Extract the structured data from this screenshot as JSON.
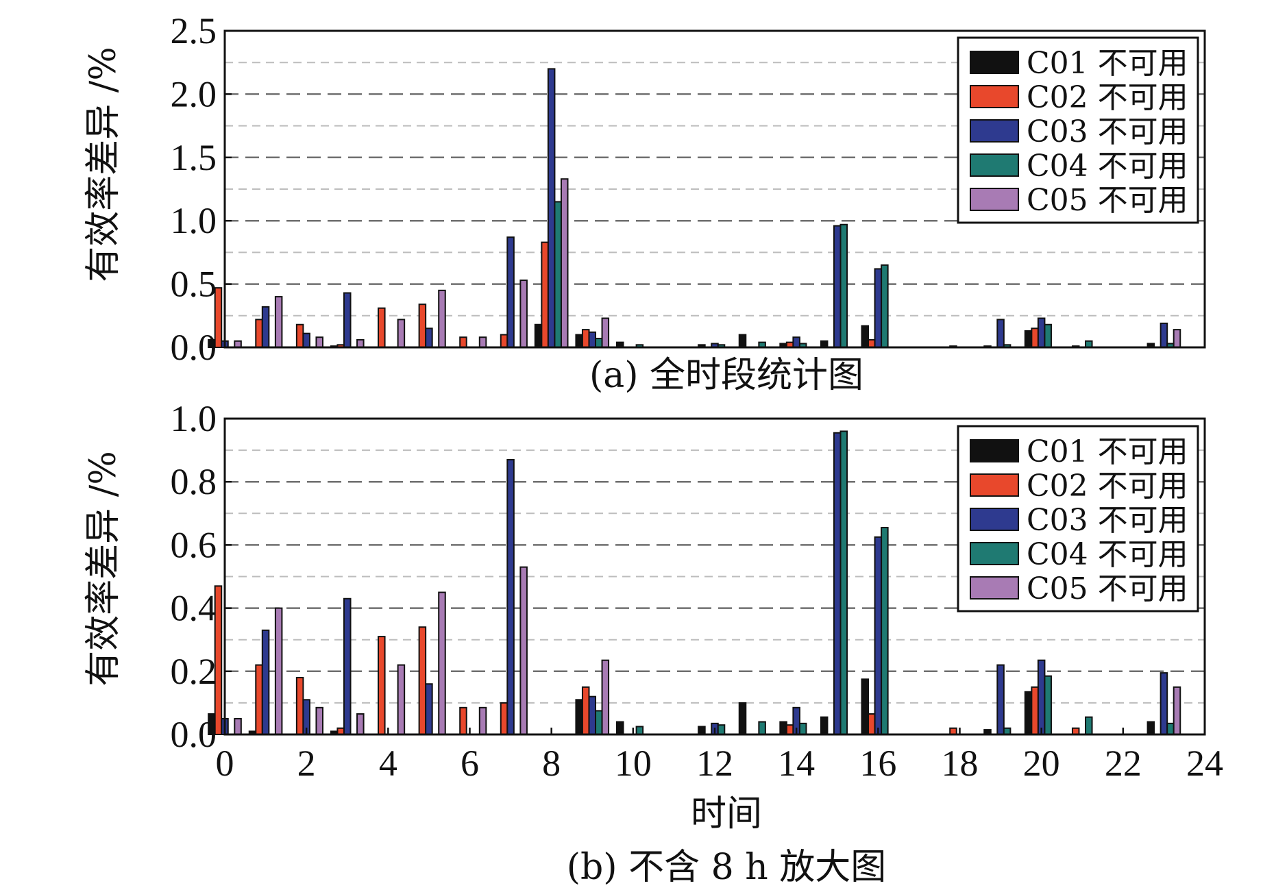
{
  "chart_data": [
    {
      "type": "bar",
      "caption": "(a) 全时段统计图",
      "ylabel": "有效率差异 /%",
      "xlabel": "",
      "ylim": [
        0,
        2.5
      ],
      "yticks": [
        "0.0",
        "0.5",
        "1.0",
        "1.5",
        "2.0",
        "2.5"
      ],
      "grid": "horizontal dashed",
      "legend_position": "top-right",
      "categories": [
        0,
        1,
        2,
        3,
        4,
        5,
        6,
        7,
        8,
        9,
        10,
        11,
        12,
        13,
        14,
        15,
        16,
        17,
        18,
        19,
        20,
        21,
        22,
        23
      ],
      "series": [
        {
          "name": "C01 不可用",
          "color": "#111111",
          "values": [
            0.06,
            0.0,
            0.0,
            0.01,
            0.0,
            0.0,
            0.0,
            0.0,
            0.18,
            0.1,
            0.04,
            0.0,
            0.02,
            0.1,
            0.03,
            0.05,
            0.17,
            0.0,
            0.0,
            0.01,
            0.13,
            0.0,
            0.0,
            0.03
          ]
        },
        {
          "name": "C02 不可用",
          "color": "#e8482c",
          "values": [
            0.47,
            0.22,
            0.18,
            0.02,
            0.31,
            0.34,
            0.08,
            0.1,
            0.83,
            0.14,
            0.0,
            0.0,
            0.0,
            0.0,
            0.04,
            0.0,
            0.06,
            0.0,
            0.01,
            0.0,
            0.15,
            0.01,
            0.0,
            0.0
          ]
        },
        {
          "name": "C03 不可用",
          "color": "#2e3a8f",
          "values": [
            0.05,
            0.32,
            0.11,
            0.43,
            0.0,
            0.15,
            0.0,
            0.87,
            2.2,
            0.12,
            0.0,
            0.0,
            0.03,
            0.0,
            0.08,
            0.96,
            0.62,
            0.0,
            0.0,
            0.22,
            0.23,
            0.0,
            0.0,
            0.19
          ]
        },
        {
          "name": "C04 不可用",
          "color": "#1f7a72",
          "values": [
            0.0,
            0.0,
            0.0,
            0.0,
            0.0,
            0.0,
            0.0,
            0.0,
            1.15,
            0.07,
            0.02,
            0.0,
            0.02,
            0.04,
            0.03,
            0.97,
            0.65,
            0.0,
            0.0,
            0.02,
            0.18,
            0.05,
            0.0,
            0.03
          ]
        },
        {
          "name": "C05 不可用",
          "color": "#a87bb4",
          "values": [
            0.05,
            0.4,
            0.08,
            0.06,
            0.22,
            0.45,
            0.08,
            0.53,
            1.33,
            0.23,
            0.0,
            0.0,
            0.0,
            0.0,
            0.0,
            0.0,
            0.0,
            0.0,
            0.0,
            0.0,
            0.0,
            0.0,
            0.0,
            0.14
          ]
        }
      ]
    },
    {
      "type": "bar",
      "caption": "(b) 不含 8 h 放大图",
      "ylabel": "有效率差异 /%",
      "xlabel": "时间",
      "ylim": [
        0,
        1.0
      ],
      "yticks": [
        "0.0",
        "0.2",
        "0.4",
        "0.6",
        "0.8",
        "1.0"
      ],
      "xticks": [
        "0",
        "2",
        "4",
        "6",
        "8",
        "10",
        "12",
        "14",
        "16",
        "18",
        "20",
        "22",
        "24"
      ],
      "grid": "horizontal dashed",
      "legend_position": "top-right",
      "categories": [
        0,
        1,
        2,
        3,
        4,
        5,
        6,
        7,
        8,
        9,
        10,
        11,
        12,
        13,
        14,
        15,
        16,
        17,
        18,
        19,
        20,
        21,
        22,
        23
      ],
      "series": [
        {
          "name": "C01 不可用",
          "color": "#111111",
          "values": [
            0.065,
            0.01,
            0.0,
            0.01,
            0.0,
            0.0,
            0.0,
            0.0,
            0.0,
            0.11,
            0.04,
            0.0,
            0.025,
            0.1,
            0.04,
            0.055,
            0.175,
            0.0,
            0.0,
            0.015,
            0.135,
            0.0,
            0.0,
            0.04
          ]
        },
        {
          "name": "C02 不可用",
          "color": "#e8482c",
          "values": [
            0.47,
            0.22,
            0.18,
            0.02,
            0.31,
            0.34,
            0.085,
            0.1,
            0.0,
            0.15,
            0.0,
            0.0,
            0.0,
            0.0,
            0.03,
            0.0,
            0.065,
            0.0,
            0.02,
            0.0,
            0.15,
            0.02,
            0.0,
            0.0
          ]
        },
        {
          "name": "C03 不可用",
          "color": "#2e3a8f",
          "values": [
            0.05,
            0.33,
            0.11,
            0.43,
            0.0,
            0.16,
            0.0,
            0.87,
            0.0,
            0.12,
            0.0,
            0.0,
            0.035,
            0.0,
            0.085,
            0.955,
            0.625,
            0.0,
            0.0,
            0.22,
            0.235,
            0.0,
            0.0,
            0.195
          ]
        },
        {
          "name": "C04 不可用",
          "color": "#1f7a72",
          "values": [
            0.0,
            0.0,
            0.0,
            0.0,
            0.0,
            0.0,
            0.0,
            0.0,
            0.0,
            0.075,
            0.025,
            0.0,
            0.03,
            0.04,
            0.035,
            0.96,
            0.655,
            0.0,
            0.0,
            0.02,
            0.185,
            0.055,
            0.0,
            0.035
          ]
        },
        {
          "name": "C05 不可用",
          "color": "#a87bb4",
          "values": [
            0.05,
            0.4,
            0.085,
            0.065,
            0.22,
            0.45,
            0.085,
            0.53,
            0.0,
            0.235,
            0.0,
            0.0,
            0.0,
            0.0,
            0.0,
            0.0,
            0.0,
            0.0,
            0.0,
            0.0,
            0.0,
            0.0,
            0.0,
            0.15
          ]
        }
      ]
    }
  ]
}
